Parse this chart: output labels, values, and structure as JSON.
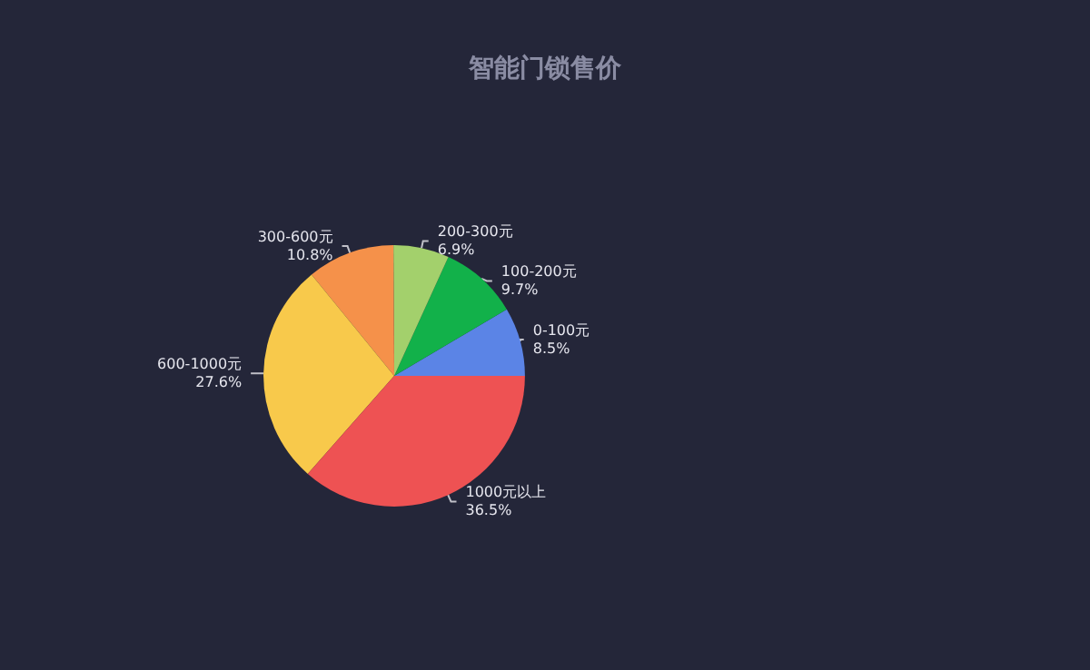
{
  "chart_data": {
    "type": "pie",
    "title": "智能门锁售价",
    "categories": [
      "0-100元",
      "100-200元",
      "200-300元",
      "300-600元",
      "600-1000元",
      "1000元以上"
    ],
    "values": [
      8.5,
      9.7,
      6.9,
      10.8,
      27.6,
      36.5
    ],
    "colors": [
      "#5b84e6",
      "#12b14a",
      "#a3d06c",
      "#f5914a",
      "#f8c94b",
      "#ee5253"
    ],
    "value_labels": [
      "8.5%",
      "9.7%",
      "6.9%",
      "10.8%",
      "27.6%",
      "36.5%"
    ]
  }
}
